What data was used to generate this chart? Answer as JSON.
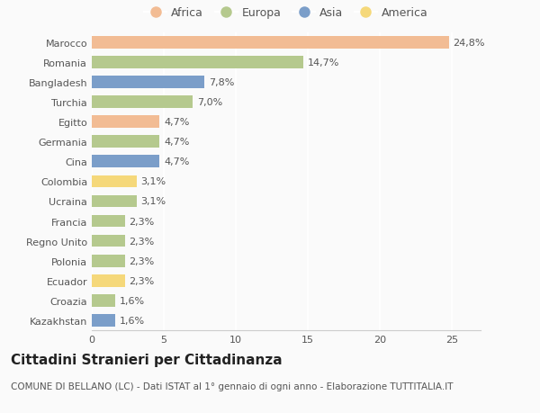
{
  "countries": [
    "Marocco",
    "Romania",
    "Bangladesh",
    "Turchia",
    "Egitto",
    "Germania",
    "Cina",
    "Colombia",
    "Ucraina",
    "Francia",
    "Regno Unito",
    "Polonia",
    "Ecuador",
    "Croazia",
    "Kazakhstan"
  ],
  "values": [
    24.8,
    14.7,
    7.8,
    7.0,
    4.7,
    4.7,
    4.7,
    3.1,
    3.1,
    2.3,
    2.3,
    2.3,
    2.3,
    1.6,
    1.6
  ],
  "labels": [
    "24,8%",
    "14,7%",
    "7,8%",
    "7,0%",
    "4,7%",
    "4,7%",
    "4,7%",
    "3,1%",
    "3,1%",
    "2,3%",
    "2,3%",
    "2,3%",
    "2,3%",
    "1,6%",
    "1,6%"
  ],
  "continents": [
    "Africa",
    "Europa",
    "Asia",
    "Europa",
    "Africa",
    "Europa",
    "Asia",
    "America",
    "Europa",
    "Europa",
    "Europa",
    "Europa",
    "America",
    "Europa",
    "Asia"
  ],
  "continent_colors": {
    "Africa": "#F2BC94",
    "Europa": "#B5C98E",
    "Asia": "#7B9EC9",
    "America": "#F5D87A"
  },
  "legend_order": [
    "Africa",
    "Europa",
    "Asia",
    "America"
  ],
  "title": "Cittadini Stranieri per Cittadinanza",
  "subtitle": "COMUNE DI BELLANO (LC) - Dati ISTAT al 1° gennaio di ogni anno - Elaborazione TUTTITALIA.IT",
  "xlim": [
    0,
    27
  ],
  "xticks": [
    0,
    5,
    10,
    15,
    20,
    25
  ],
  "background_color": "#FAFAFA",
  "bar_height": 0.62,
  "grid_color": "#FFFFFF",
  "label_fontsize": 8,
  "title_fontsize": 11,
  "subtitle_fontsize": 7.5,
  "tick_fontsize": 8,
  "legend_fontsize": 9
}
